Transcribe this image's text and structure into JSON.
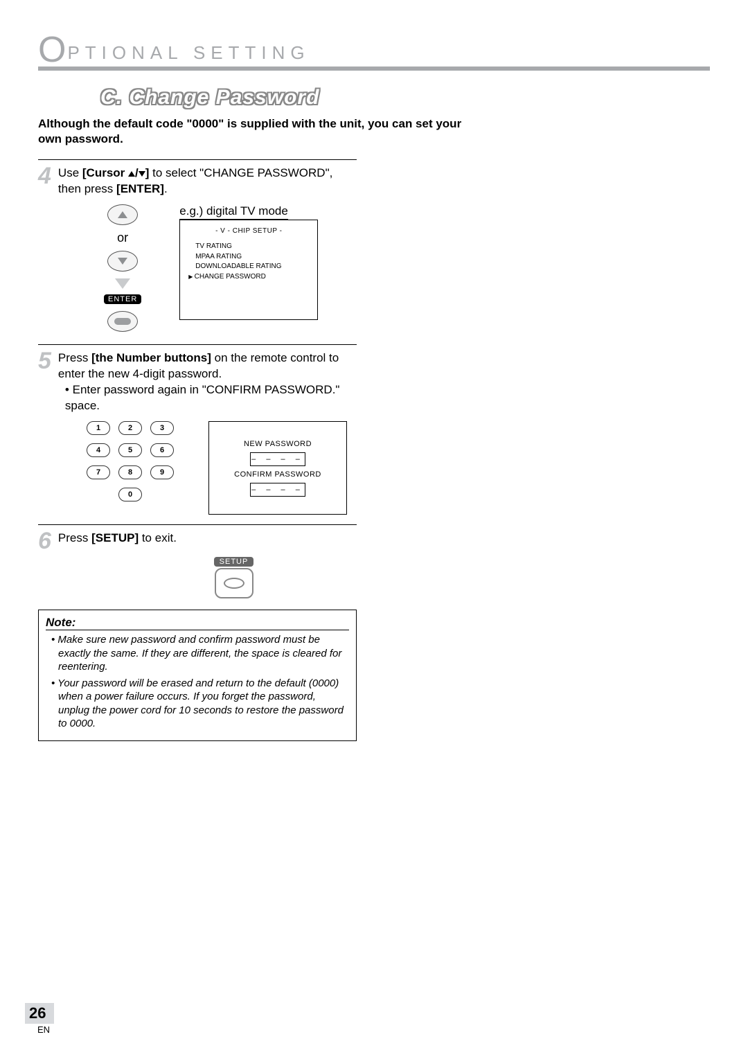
{
  "header": {
    "prefix": "O",
    "rest": "PTIONAL   SETTING"
  },
  "section_title": "C.  Change Password",
  "intro": "Although the default code \"0000\" is supplied with the unit, you can set your own password.",
  "step4": {
    "num": "4",
    "text_pre": "Use ",
    "cursor_label": "[Cursor ",
    "cursor_mid": "/",
    "cursor_close": "]",
    "text_mid": " to select \"CHANGE PASSWORD\", then press ",
    "enter_label": "[ENTER]",
    "text_end": "."
  },
  "remote": {
    "or": "or",
    "enter": "ENTER"
  },
  "tvframe": {
    "caption": "e.g.) digital TV mode",
    "header": "- V - CHIP SETUP -",
    "items": [
      "TV RATING",
      "MPAA RATING",
      "DOWNLOADABLE RATING",
      "CHANGE PASSWORD"
    ],
    "selected_index": 3
  },
  "step5": {
    "num": "5",
    "text_pre": "Press ",
    "nb_label": "[the Number buttons]",
    "text_mid": " on the remote control to enter the new 4-digit password.",
    "bullet": "Enter password again in \"CONFIRM PASSWORD.\" space."
  },
  "keypad": [
    "1",
    "2",
    "3",
    "4",
    "5",
    "6",
    "7",
    "8",
    "9",
    "0"
  ],
  "pwdbox": {
    "line1": "NEW PASSWORD",
    "dashes": "– – – –",
    "line2": "CONFIRM PASSWORD"
  },
  "step6": {
    "num": "6",
    "text_pre": "Press ",
    "setup_label": "[SETUP]",
    "text_end": " to exit."
  },
  "setup_pill": "SETUP",
  "note": {
    "title": "Note:",
    "items": [
      "Make sure new password and confirm password must be exactly the same. If they are different, the space is cleared for reentering.",
      "Your password will be erased and return to the default (0000) when a power failure occurs. If you forget the password, unplug the power cord for 10 seconds to restore the password to 0000."
    ]
  },
  "footer": {
    "page": "26",
    "lang": "EN"
  }
}
